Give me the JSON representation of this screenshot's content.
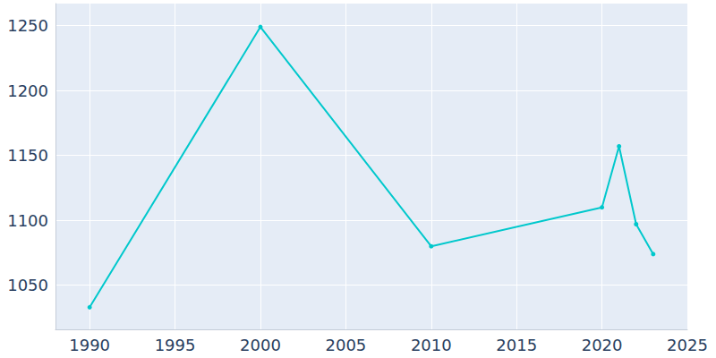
{
  "chart_data": {
    "type": "line",
    "x": [
      1990,
      2000,
      2010,
      2020,
      2021,
      2022,
      2023
    ],
    "values": [
      1033,
      1249,
      1080,
      1110,
      1157,
      1097,
      1074
    ],
    "color": "#00c8cc",
    "marker": "circle",
    "xlim": [
      1988,
      2025
    ],
    "xticks": [
      1990,
      1995,
      2000,
      2005,
      2010,
      2015,
      2020,
      2025
    ],
    "ylim": [
      1016,
      1267
    ],
    "yticks": [
      1050,
      1100,
      1150,
      1200,
      1250
    ],
    "grid": true
  }
}
